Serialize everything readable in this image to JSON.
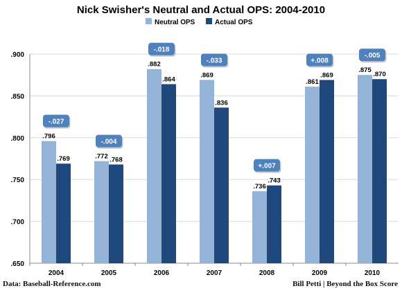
{
  "chart_data": {
    "type": "bar",
    "title": "Nick Swisher's Neutral and Actual OPS: 2004-2010",
    "categories": [
      "2004",
      "2005",
      "2006",
      "2007",
      "2008",
      "2009",
      "2010"
    ],
    "series": [
      {
        "name": "Neutral OPS",
        "values": [
          0.796,
          0.772,
          0.882,
          0.869,
          0.736,
          0.861,
          0.875
        ],
        "labels": [
          ".796",
          ".772",
          ".882",
          ".869",
          ".736",
          ".861",
          ".875"
        ],
        "color": "#95b3d7"
      },
      {
        "name": "Actual OPS",
        "values": [
          0.769,
          0.768,
          0.864,
          0.836,
          0.743,
          0.869,
          0.87
        ],
        "labels": [
          ".769",
          ".768",
          ".864",
          ".836",
          ".743",
          ".869",
          ".870"
        ],
        "color": "#1f497d"
      }
    ],
    "differences": [
      "-.027",
      "-.004",
      "-.018",
      "-.033",
      "+.007",
      "+.008",
      "-.005"
    ],
    "ylim": [
      0.65,
      0.9
    ],
    "yticks": [
      ".650",
      ".700",
      ".750",
      ".800",
      ".850",
      ".900"
    ],
    "grid": true,
    "legend": "top-center",
    "callout_color": "#4f81bd"
  },
  "footer": {
    "source": "Data: Baseball-Reference.com",
    "credit": "Bill Petti | Beyond the Box Score"
  }
}
